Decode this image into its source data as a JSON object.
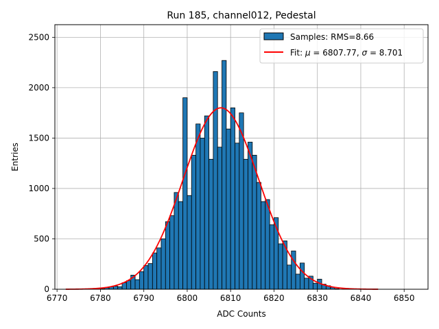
{
  "chart_data": {
    "type": "bar",
    "title": "Run 185, channel012, Pedestal",
    "xlabel": "ADC Counts",
    "ylabel": "Entries",
    "xlim": [
      6769.5,
      6855.5
    ],
    "ylim": [
      0,
      2625
    ],
    "xticks": [
      6770,
      6780,
      6790,
      6800,
      6810,
      6820,
      6830,
      6840,
      6850
    ],
    "yticks": [
      0,
      500,
      1000,
      1500,
      2000,
      2500
    ],
    "grid": true,
    "legend_position": "top-right",
    "histogram": {
      "name": "Samples: RMS=8.66",
      "color": "#1f77b4",
      "bin_width": 1,
      "bin_starts": [
        6780,
        6781,
        6782,
        6783,
        6784,
        6785,
        6786,
        6787,
        6788,
        6789,
        6790,
        6791,
        6792,
        6793,
        6794,
        6795,
        6796,
        6797,
        6798,
        6799,
        6800,
        6801,
        6802,
        6803,
        6804,
        6805,
        6806,
        6807,
        6808,
        6809,
        6810,
        6811,
        6812,
        6813,
        6814,
        6815,
        6816,
        6817,
        6818,
        6819,
        6820,
        6821,
        6822,
        6823,
        6824,
        6825,
        6826,
        6827,
        6828,
        6829,
        6830,
        6831,
        6832,
        6833,
        6834
      ],
      "counts": [
        5,
        15,
        25,
        30,
        25,
        65,
        85,
        140,
        95,
        175,
        235,
        255,
        360,
        410,
        500,
        670,
        730,
        960,
        870,
        1900,
        930,
        1330,
        1640,
        1500,
        1720,
        1290,
        2160,
        1410,
        2270,
        1590,
        1800,
        1450,
        1750,
        1290,
        1460,
        1330,
        1060,
        870,
        890,
        640,
        710,
        450,
        480,
        240,
        380,
        150,
        260,
        110,
        130,
        60,
        100,
        50,
        35,
        20,
        5
      ]
    },
    "fit": {
      "name": "Fit: $\\mu$ = 6807.77, $\\sigma$ = 8.701",
      "label_prefix": "Fit: ",
      "mu_symbol": "μ",
      "mu_text": " = 6807.77, ",
      "sigma_symbol": "σ",
      "sigma_text": " = 8.701",
      "type": "gaussian",
      "mean": 6807.77,
      "sigma": 8.701,
      "amplitude": 1800,
      "x_range": [
        6772,
        6844
      ],
      "color": "#ff0000"
    }
  }
}
